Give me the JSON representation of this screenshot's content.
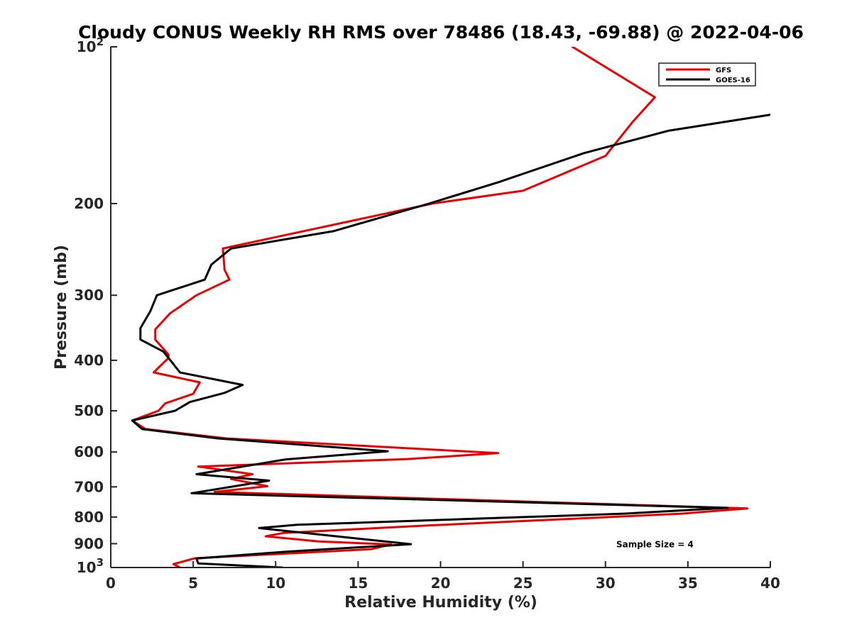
{
  "chart_data": {
    "type": "line",
    "title": "Cloudy CONUS Weekly RH RMS over 78486 (18.43, -69.88) @ 2022-04-06",
    "xlabel": "Relative Humidity (%)",
    "ylabel": "Pressure (mb)",
    "xlim": [
      0,
      40
    ],
    "ylim": [
      100,
      1000
    ],
    "y_scale": "log",
    "y_reversed": true,
    "grid": false,
    "legend_position": "top-right",
    "x_ticks": [
      {
        "value": 0,
        "label": "0"
      },
      {
        "value": 5,
        "label": "5"
      },
      {
        "value": 10,
        "label": "10"
      },
      {
        "value": 15,
        "label": "15"
      },
      {
        "value": 20,
        "label": "20"
      },
      {
        "value": 25,
        "label": "25"
      },
      {
        "value": 30,
        "label": "30"
      },
      {
        "value": 35,
        "label": "35"
      },
      {
        "value": 40,
        "label": "40"
      }
    ],
    "y_ticks": [
      {
        "value": 100,
        "label": "10",
        "sup": "2"
      },
      {
        "value": 200,
        "label": "200",
        "sup": ""
      },
      {
        "value": 300,
        "label": "300",
        "sup": ""
      },
      {
        "value": 400,
        "label": "400",
        "sup": ""
      },
      {
        "value": 500,
        "label": "500",
        "sup": ""
      },
      {
        "value": 600,
        "label": "600",
        "sup": ""
      },
      {
        "value": 700,
        "label": "700",
        "sup": ""
      },
      {
        "value": 800,
        "label": "800",
        "sup": ""
      },
      {
        "value": 900,
        "label": "900",
        "sup": ""
      },
      {
        "value": 1000,
        "label": "10",
        "sup": "3"
      }
    ],
    "series": [
      {
        "name": "GFS",
        "color": "#e60000",
        "points": [
          [
            28.0,
            100
          ],
          [
            33.0,
            125
          ],
          [
            31.6,
            140
          ],
          [
            30.0,
            162
          ],
          [
            25.0,
            189
          ],
          [
            19.5,
            200
          ],
          [
            6.8,
            244
          ],
          [
            6.9,
            268
          ],
          [
            7.2,
            280
          ],
          [
            5.2,
            300
          ],
          [
            3.6,
            325
          ],
          [
            2.7,
            349
          ],
          [
            2.7,
            365
          ],
          [
            3.5,
            390
          ],
          [
            3.5,
            396
          ],
          [
            2.6,
            422
          ],
          [
            5.4,
            441
          ],
          [
            5.0,
            464
          ],
          [
            3.3,
            484
          ],
          [
            2.9,
            500
          ],
          [
            1.3,
            522
          ],
          [
            2.1,
            542
          ],
          [
            7.0,
            565
          ],
          [
            23.5,
            603
          ],
          [
            18.0,
            619
          ],
          [
            5.3,
            640
          ],
          [
            8.6,
            662
          ],
          [
            7.3,
            676
          ],
          [
            9.5,
            698
          ],
          [
            6.3,
            716
          ],
          [
            38.6,
            770
          ],
          [
            34.6,
            788
          ],
          [
            19.0,
            831
          ],
          [
            10.5,
            858
          ],
          [
            9.4,
            871
          ],
          [
            12.6,
            891
          ],
          [
            17.0,
            903
          ],
          [
            15.8,
            922
          ],
          [
            5.1,
            960
          ],
          [
            3.8,
            985
          ],
          [
            4.2,
            1000
          ]
        ]
      },
      {
        "name": "GOES-16",
        "color": "#000000",
        "points": [
          [
            40.0,
            135
          ],
          [
            33.8,
            145
          ],
          [
            28.7,
            160
          ],
          [
            23.5,
            182
          ],
          [
            19.3,
            200
          ],
          [
            13.5,
            226
          ],
          [
            7.3,
            244
          ],
          [
            6.1,
            262
          ],
          [
            5.7,
            280
          ],
          [
            2.8,
            300
          ],
          [
            2.4,
            322
          ],
          [
            1.8,
            347
          ],
          [
            1.8,
            365
          ],
          [
            3.2,
            385
          ],
          [
            4.2,
            422
          ],
          [
            8.0,
            446
          ],
          [
            6.9,
            462
          ],
          [
            4.8,
            481
          ],
          [
            3.9,
            500
          ],
          [
            1.3,
            522
          ],
          [
            1.9,
            542
          ],
          [
            6.5,
            565
          ],
          [
            16.8,
            598
          ],
          [
            10.6,
            620
          ],
          [
            5.2,
            662
          ],
          [
            9.6,
            681
          ],
          [
            4.9,
            720
          ],
          [
            37.4,
            768
          ],
          [
            31.1,
            788
          ],
          [
            11.3,
            828
          ],
          [
            9.0,
            840
          ],
          [
            18.2,
            902
          ],
          [
            10.7,
            932
          ],
          [
            5.2,
            961
          ],
          [
            5.3,
            982
          ],
          [
            10.4,
            1000
          ]
        ]
      }
    ],
    "annotations": [
      {
        "text": "Sample Size = 4",
        "x": 33.0,
        "y": 900
      }
    ]
  }
}
